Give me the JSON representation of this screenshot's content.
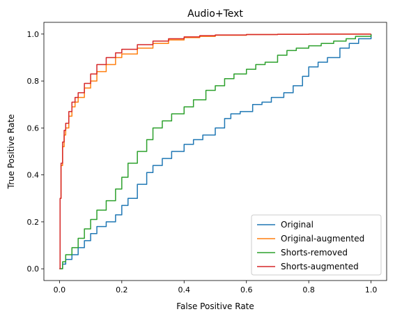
{
  "chart_data": {
    "type": "line",
    "title": "Audio+Text",
    "xlabel": "False Positive Rate",
    "ylabel": "True Positive Rate",
    "xlim": [
      -0.05,
      1.05
    ],
    "ylim": [
      -0.05,
      1.05
    ],
    "xticks": [
      0.0,
      0.2,
      0.4,
      0.6,
      0.8,
      1.0
    ],
    "yticks": [
      0.0,
      0.2,
      0.4,
      0.6,
      0.8,
      1.0
    ],
    "xtick_labels": [
      "0.0",
      "0.2",
      "0.4",
      "0.6",
      "0.8",
      "1.0"
    ],
    "ytick_labels": [
      "0.0",
      "0.2",
      "0.4",
      "0.6",
      "0.8",
      "1.0"
    ],
    "grid": false,
    "legend_position": "lower-right",
    "series": [
      {
        "name": "Original",
        "color": "#1f77b4",
        "x": [
          0.0,
          0.01,
          0.02,
          0.04,
          0.06,
          0.08,
          0.1,
          0.12,
          0.15,
          0.18,
          0.2,
          0.22,
          0.25,
          0.28,
          0.3,
          0.33,
          0.36,
          0.4,
          0.43,
          0.46,
          0.5,
          0.53,
          0.55,
          0.58,
          0.62,
          0.65,
          0.68,
          0.72,
          0.75,
          0.78,
          0.8,
          0.83,
          0.86,
          0.9,
          0.93,
          0.96,
          1.0
        ],
        "y": [
          0.0,
          0.02,
          0.04,
          0.06,
          0.09,
          0.12,
          0.15,
          0.18,
          0.2,
          0.23,
          0.27,
          0.3,
          0.36,
          0.41,
          0.44,
          0.47,
          0.5,
          0.53,
          0.55,
          0.57,
          0.6,
          0.64,
          0.66,
          0.67,
          0.7,
          0.71,
          0.73,
          0.75,
          0.78,
          0.82,
          0.86,
          0.88,
          0.9,
          0.94,
          0.96,
          0.98,
          1.0
        ]
      },
      {
        "name": "Original-augmented",
        "color": "#ff7f0e",
        "x": [
          0.0,
          0.002,
          0.005,
          0.01,
          0.015,
          0.02,
          0.03,
          0.04,
          0.05,
          0.06,
          0.08,
          0.1,
          0.12,
          0.15,
          0.18,
          0.2,
          0.25,
          0.3,
          0.35,
          0.4,
          0.45,
          0.5,
          0.6,
          0.7,
          0.8,
          0.9,
          1.0
        ],
        "y": [
          0.0,
          0.3,
          0.44,
          0.52,
          0.57,
          0.6,
          0.65,
          0.69,
          0.71,
          0.73,
          0.77,
          0.8,
          0.84,
          0.87,
          0.9,
          0.915,
          0.94,
          0.96,
          0.975,
          0.985,
          0.99,
          0.995,
          0.998,
          0.999,
          1.0,
          1.0,
          1.0
        ]
      },
      {
        "name": "Shorts-removed",
        "color": "#2ca02c",
        "x": [
          0.0,
          0.01,
          0.02,
          0.04,
          0.06,
          0.08,
          0.1,
          0.12,
          0.15,
          0.18,
          0.2,
          0.22,
          0.25,
          0.28,
          0.3,
          0.33,
          0.36,
          0.4,
          0.43,
          0.47,
          0.5,
          0.53,
          0.56,
          0.6,
          0.63,
          0.66,
          0.7,
          0.73,
          0.76,
          0.8,
          0.84,
          0.88,
          0.92,
          0.95,
          1.0
        ],
        "y": [
          0.0,
          0.03,
          0.06,
          0.09,
          0.13,
          0.17,
          0.21,
          0.25,
          0.29,
          0.34,
          0.39,
          0.45,
          0.5,
          0.55,
          0.6,
          0.63,
          0.66,
          0.69,
          0.72,
          0.76,
          0.78,
          0.81,
          0.83,
          0.85,
          0.87,
          0.88,
          0.91,
          0.93,
          0.94,
          0.95,
          0.96,
          0.97,
          0.98,
          0.99,
          1.0
        ]
      },
      {
        "name": "Shorts-augmented",
        "color": "#d62728",
        "x": [
          0.0,
          0.002,
          0.005,
          0.01,
          0.015,
          0.02,
          0.03,
          0.04,
          0.05,
          0.06,
          0.08,
          0.1,
          0.12,
          0.15,
          0.18,
          0.2,
          0.25,
          0.3,
          0.35,
          0.4,
          0.45,
          0.5,
          0.6,
          0.7,
          0.8,
          0.9,
          1.0
        ],
        "y": [
          0.0,
          0.3,
          0.45,
          0.54,
          0.59,
          0.62,
          0.67,
          0.71,
          0.73,
          0.75,
          0.79,
          0.83,
          0.87,
          0.9,
          0.92,
          0.935,
          0.955,
          0.97,
          0.98,
          0.988,
          0.993,
          0.996,
          0.998,
          0.999,
          1.0,
          1.0,
          1.0
        ]
      }
    ]
  }
}
